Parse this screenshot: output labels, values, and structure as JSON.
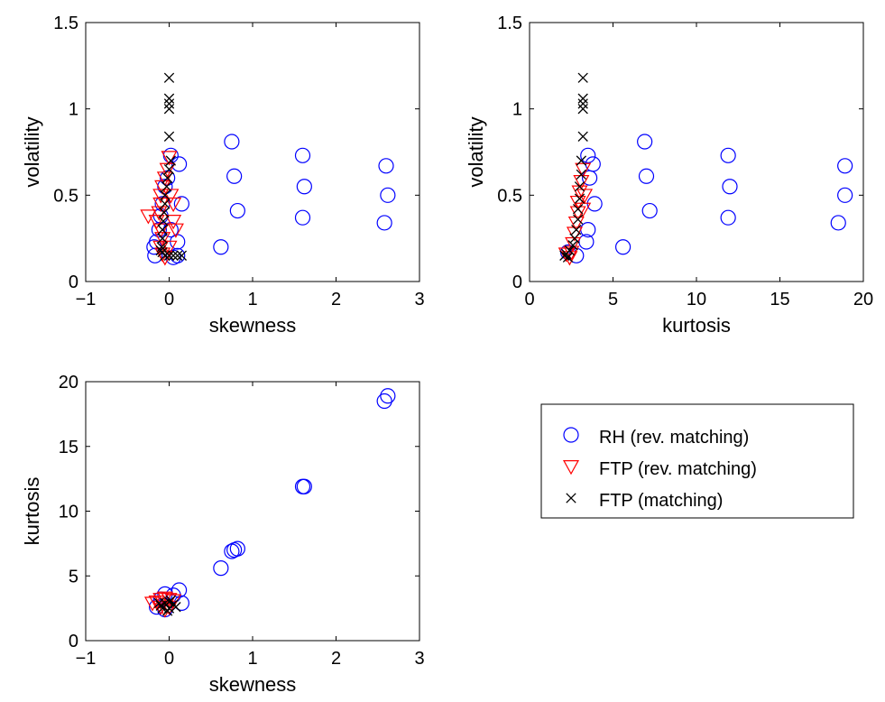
{
  "chart_data": [
    {
      "type": "scatter",
      "panel": "top-left",
      "xlabel": "skewness",
      "ylabel": "volatility",
      "xlim": [
        -1,
        3
      ],
      "ylim": [
        0,
        1.5
      ],
      "xticks": [
        -1,
        0,
        1,
        2,
        3
      ],
      "xtick_labels": [
        "−1",
        "0",
        "1",
        "2",
        "3"
      ],
      "yticks": [
        0,
        0.5,
        1,
        1.5
      ],
      "ytick_labels": [
        "0",
        "0.5",
        "1",
        "1.5"
      ],
      "grid": false,
      "series": [
        {
          "name": "RH (rev. matching)",
          "marker": "circle",
          "color": "#0000ff",
          "points": [
            [
              0.02,
              0.73
            ],
            [
              0.15,
              0.45
            ],
            [
              0.12,
              0.68
            ],
            [
              0.1,
              0.23
            ],
            [
              0.1,
              0.15
            ],
            [
              -0.02,
              0.6
            ],
            [
              -0.05,
              0.55
            ],
            [
              -0.08,
              0.45
            ],
            [
              -0.1,
              0.38
            ],
            [
              -0.12,
              0.3
            ],
            [
              -0.15,
              0.23
            ],
            [
              -0.18,
              0.2
            ],
            [
              -0.17,
              0.15
            ],
            [
              0.05,
              0.14
            ],
            [
              0.02,
              0.3
            ],
            [
              0.62,
              0.2
            ],
            [
              0.75,
              0.81
            ],
            [
              0.78,
              0.61
            ],
            [
              0.82,
              0.41
            ],
            [
              1.6,
              0.73
            ],
            [
              1.62,
              0.55
            ],
            [
              1.6,
              0.37
            ],
            [
              2.6,
              0.67
            ],
            [
              2.62,
              0.5
            ],
            [
              2.58,
              0.34
            ]
          ]
        },
        {
          "name": "FTP (rev. matching)",
          "marker": "triangle-down",
          "color": "#ff0000",
          "points": [
            [
              0.0,
              0.72
            ],
            [
              -0.02,
              0.65
            ],
            [
              -0.05,
              0.6
            ],
            [
              -0.08,
              0.55
            ],
            [
              -0.1,
              0.5
            ],
            [
              -0.1,
              0.45
            ],
            [
              -0.12,
              0.4
            ],
            [
              -0.15,
              0.35
            ],
            [
              -0.25,
              0.38
            ],
            [
              -0.1,
              0.3
            ],
            [
              -0.08,
              0.25
            ],
            [
              -0.1,
              0.2
            ],
            [
              -0.08,
              0.16
            ],
            [
              -0.05,
              0.14
            ],
            [
              0.05,
              0.35
            ],
            [
              0.08,
              0.3
            ],
            [
              0.02,
              0.5
            ],
            [
              0.05,
              0.45
            ],
            [
              0.0,
              0.2
            ]
          ]
        },
        {
          "name": "FTP (matching)",
          "marker": "x",
          "color": "#000000",
          "points": [
            [
              0.0,
              1.18
            ],
            [
              0.0,
              1.06
            ],
            [
              0.0,
              1.03
            ],
            [
              0.0,
              1.0
            ],
            [
              0.0,
              0.84
            ],
            [
              0.02,
              0.7
            ],
            [
              0.0,
              0.65
            ],
            [
              -0.02,
              0.6
            ],
            [
              -0.03,
              0.55
            ],
            [
              -0.05,
              0.5
            ],
            [
              -0.05,
              0.45
            ],
            [
              -0.06,
              0.4
            ],
            [
              -0.07,
              0.35
            ],
            [
              -0.08,
              0.3
            ],
            [
              -0.08,
              0.25
            ],
            [
              -0.09,
              0.2
            ],
            [
              -0.08,
              0.17
            ],
            [
              -0.05,
              0.15
            ],
            [
              0.0,
              0.15
            ],
            [
              0.05,
              0.15
            ],
            [
              0.1,
              0.15
            ],
            [
              0.15,
              0.15
            ],
            [
              -0.1,
              0.18
            ]
          ]
        }
      ]
    },
    {
      "type": "scatter",
      "panel": "top-right",
      "xlabel": "kurtosis",
      "ylabel": "volatility",
      "xlim": [
        0,
        20
      ],
      "ylim": [
        0,
        1.5
      ],
      "xticks": [
        0,
        5,
        10,
        15,
        20
      ],
      "xtick_labels": [
        "0",
        "5",
        "10",
        "15",
        "20"
      ],
      "yticks": [
        0,
        0.5,
        1,
        1.5
      ],
      "ytick_labels": [
        "0",
        "0.5",
        "1",
        "1.5"
      ],
      "grid": false,
      "series": [
        {
          "name": "RH (rev. matching)",
          "marker": "circle",
          "color": "#0000ff",
          "points": [
            [
              3.5,
              0.73
            ],
            [
              3.8,
              0.68
            ],
            [
              3.9,
              0.45
            ],
            [
              3.6,
              0.6
            ],
            [
              3.5,
              0.3
            ],
            [
              3.4,
              0.23
            ],
            [
              2.8,
              0.15
            ],
            [
              2.3,
              0.17
            ],
            [
              5.6,
              0.2
            ],
            [
              6.9,
              0.81
            ],
            [
              7.0,
              0.61
            ],
            [
              7.2,
              0.41
            ],
            [
              11.9,
              0.73
            ],
            [
              12.0,
              0.55
            ],
            [
              11.9,
              0.37
            ],
            [
              18.9,
              0.67
            ],
            [
              18.9,
              0.5
            ],
            [
              18.5,
              0.34
            ]
          ]
        },
        {
          "name": "FTP (rev. matching)",
          "marker": "triangle-down",
          "color": "#ff0000",
          "points": [
            [
              3.2,
              0.65
            ],
            [
              3.1,
              0.58
            ],
            [
              3.0,
              0.52
            ],
            [
              2.9,
              0.46
            ],
            [
              2.9,
              0.4
            ],
            [
              2.8,
              0.34
            ],
            [
              2.7,
              0.28
            ],
            [
              2.6,
              0.22
            ],
            [
              2.5,
              0.17
            ],
            [
              2.4,
              0.14
            ],
            [
              2.2,
              0.16
            ],
            [
              3.3,
              0.5
            ],
            [
              3.2,
              0.42
            ]
          ]
        },
        {
          "name": "FTP (matching)",
          "marker": "x",
          "color": "#000000",
          "points": [
            [
              3.2,
              1.18
            ],
            [
              3.2,
              1.06
            ],
            [
              3.2,
              1.03
            ],
            [
              3.2,
              1.0
            ],
            [
              3.2,
              0.84
            ],
            [
              3.1,
              0.7
            ],
            [
              3.1,
              0.62
            ],
            [
              3.0,
              0.55
            ],
            [
              3.0,
              0.48
            ],
            [
              2.9,
              0.42
            ],
            [
              2.9,
              0.36
            ],
            [
              2.8,
              0.3
            ],
            [
              2.7,
              0.25
            ],
            [
              2.6,
              0.21
            ],
            [
              2.4,
              0.18
            ],
            [
              2.2,
              0.16
            ],
            [
              2.1,
              0.15
            ],
            [
              2.3,
              0.14
            ]
          ]
        }
      ]
    },
    {
      "type": "scatter",
      "panel": "bottom-left",
      "xlabel": "skewness",
      "ylabel": "kurtosis",
      "xlim": [
        -1,
        3
      ],
      "ylim": [
        0,
        20
      ],
      "xticks": [
        -1,
        0,
        1,
        2,
        3
      ],
      "xtick_labels": [
        "−1",
        "0",
        "1",
        "2",
        "3"
      ],
      "yticks": [
        0,
        5,
        10,
        15,
        20
      ],
      "ytick_labels": [
        "0",
        "5",
        "10",
        "15",
        "20"
      ],
      "grid": false,
      "series": [
        {
          "name": "RH (rev. matching)",
          "marker": "circle",
          "color": "#0000ff",
          "points": [
            [
              0.12,
              3.9
            ],
            [
              0.15,
              2.9
            ],
            [
              0.05,
              3.5
            ],
            [
              -0.05,
              3.6
            ],
            [
              -0.1,
              3.2
            ],
            [
              -0.15,
              2.6
            ],
            [
              -0.05,
              2.4
            ],
            [
              0.62,
              5.6
            ],
            [
              0.75,
              6.9
            ],
            [
              0.78,
              7.0
            ],
            [
              0.82,
              7.1
            ],
            [
              1.6,
              11.9
            ],
            [
              1.62,
              11.9
            ],
            [
              2.58,
              18.5
            ],
            [
              2.62,
              18.9
            ]
          ]
        },
        {
          "name": "FTP (rev. matching)",
          "marker": "triangle-down",
          "color": "#ff0000",
          "points": [
            [
              -0.2,
              2.9
            ],
            [
              -0.15,
              3.0
            ],
            [
              -0.1,
              3.2
            ],
            [
              -0.05,
              3.3
            ],
            [
              0.0,
              3.2
            ],
            [
              0.05,
              3.1
            ],
            [
              -0.1,
              2.6
            ],
            [
              -0.05,
              2.4
            ],
            [
              0.0,
              2.6
            ]
          ]
        },
        {
          "name": "FTP (matching)",
          "marker": "x",
          "color": "#000000",
          "points": [
            [
              -0.1,
              2.7
            ],
            [
              -0.05,
              2.9
            ],
            [
              0.0,
              3.0
            ],
            [
              0.02,
              3.1
            ],
            [
              -0.08,
              2.5
            ],
            [
              -0.02,
              2.3
            ],
            [
              0.05,
              2.8
            ],
            [
              0.08,
              2.6
            ],
            [
              -0.12,
              2.9
            ],
            [
              0.0,
              2.5
            ]
          ]
        }
      ]
    }
  ],
  "legend": {
    "placement": "lower-right",
    "entries": [
      {
        "label": "RH (rev. matching)",
        "marker": "circle",
        "color": "#0000ff"
      },
      {
        "label": "FTP (rev. matching)",
        "marker": "triangle-down",
        "color": "#ff0000"
      },
      {
        "label": "FTP (matching)",
        "marker": "x",
        "color": "#000000"
      }
    ]
  }
}
